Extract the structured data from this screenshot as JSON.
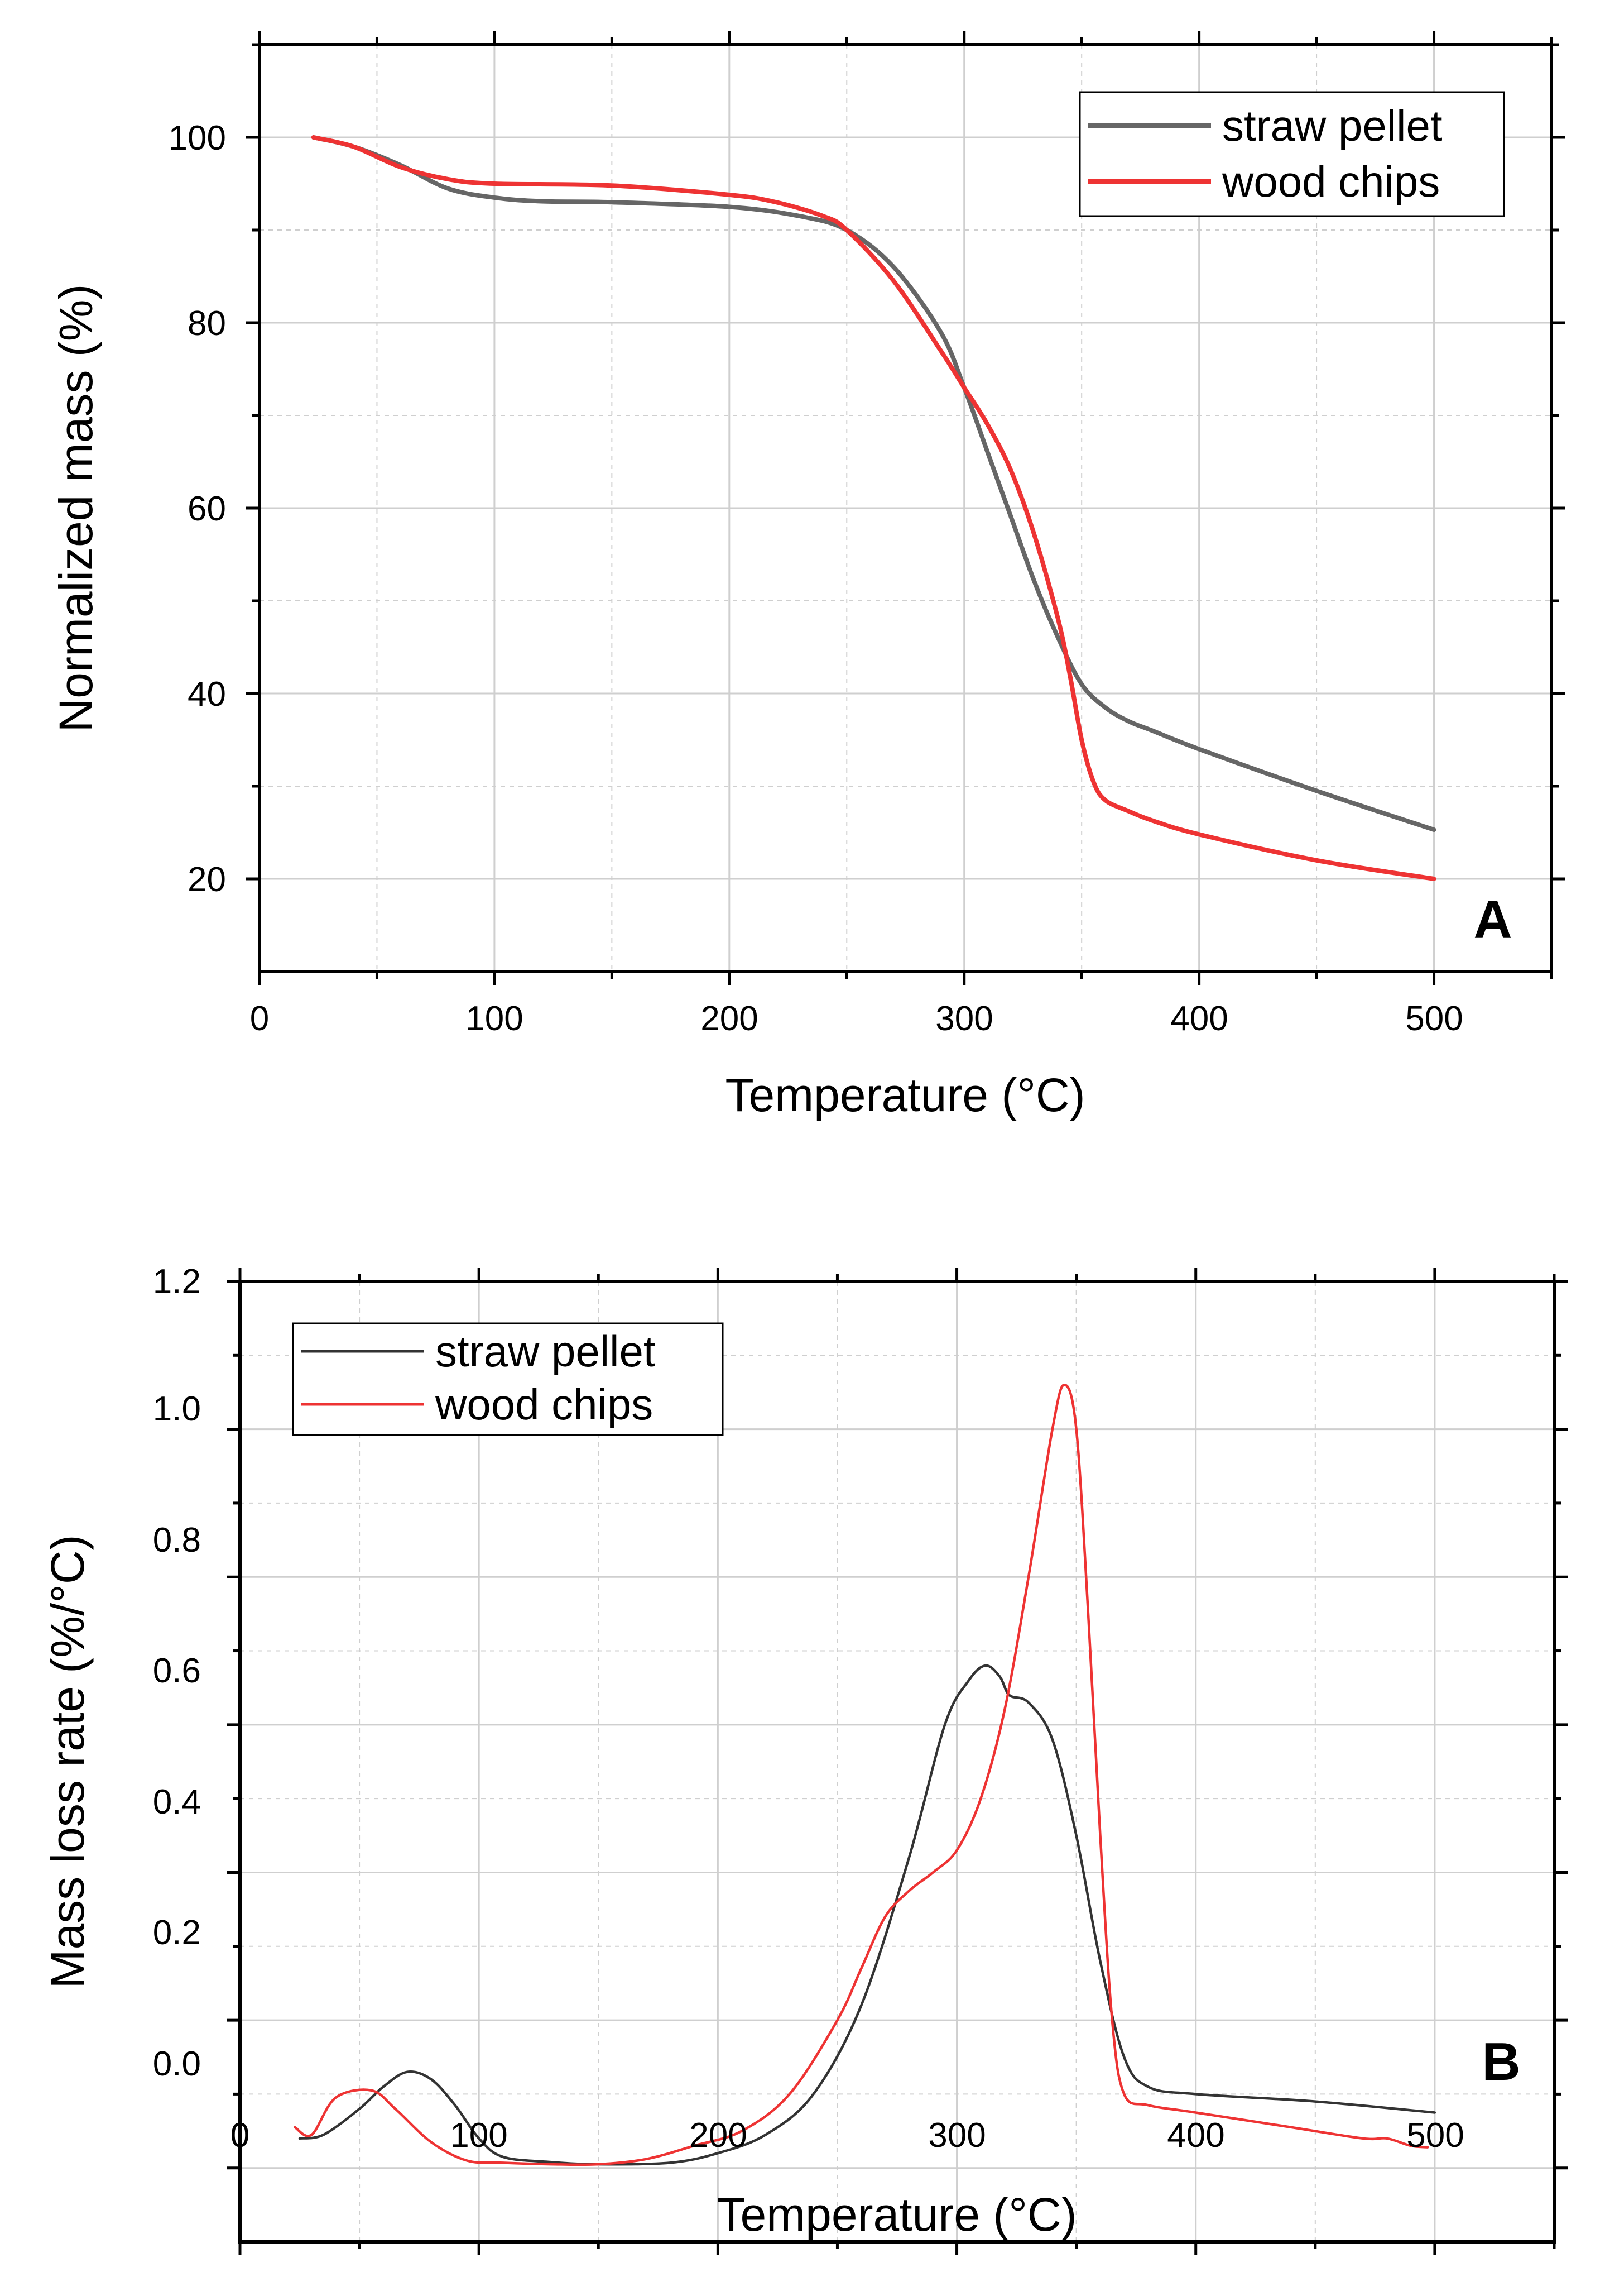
{
  "chart_data": [
    {
      "type": "line",
      "panel": "A",
      "xlabel": "Temperature (°C)",
      "ylabel": "Normalized mass (%)",
      "xlim": [
        0,
        550
      ],
      "ylim": [
        10,
        110
      ],
      "xticks": [
        0,
        100,
        200,
        300,
        400,
        500
      ],
      "yticks": [
        20,
        40,
        60,
        80,
        100
      ],
      "xtick_labels": [
        "0",
        "100",
        "200",
        "300",
        "400",
        "500"
      ],
      "ytick_labels": [
        "20",
        "40",
        "60",
        "80",
        "100"
      ],
      "grid": true,
      "legend_position": "top-right",
      "series": [
        {
          "name": "straw pellet",
          "color": "#666666",
          "x": [
            23,
            40,
            60,
            80,
            100,
            120,
            150,
            200,
            230,
            250,
            270,
            290,
            300,
            310,
            320,
            330,
            340,
            350,
            360,
            370,
            380,
            400,
            450,
            500
          ],
          "y": [
            100,
            99,
            97,
            94.5,
            93.5,
            93.1,
            93.0,
            92.5,
            91.5,
            90,
            86,
            79,
            73,
            66,
            59,
            52,
            46,
            41,
            38.5,
            37,
            36,
            34,
            29.5,
            25.3
          ]
        },
        {
          "name": "wood chips",
          "color": "#ee3333",
          "x": [
            23,
            40,
            60,
            80,
            100,
            150,
            200,
            220,
            240,
            250,
            270,
            290,
            300,
            310,
            320,
            330,
            340,
            345,
            350,
            355,
            360,
            370,
            380,
            400,
            450,
            500
          ],
          "y": [
            100,
            99,
            96.8,
            95.5,
            95,
            94.8,
            93.8,
            93,
            91.5,
            90,
            84.5,
            77,
            73,
            69,
            64,
            57,
            48,
            42,
            35,
            30.5,
            28.5,
            27.3,
            26.3,
            24.8,
            22,
            20
          ]
        }
      ]
    },
    {
      "type": "line",
      "panel": "B",
      "xlabel": "Temperature (°C)",
      "ylabel": "Mass loss rate (%/°C)",
      "xlim": [
        0,
        550
      ],
      "ylim": [
        -0.1,
        1.2
      ],
      "xticks": [
        0,
        100,
        200,
        300,
        400,
        500
      ],
      "yticks": [
        0.0,
        0.2,
        0.4,
        0.6,
        0.8,
        1.0,
        1.2
      ],
      "xtick_labels": [
        "0",
        "100",
        "200",
        "300",
        "400",
        "500"
      ],
      "ytick_labels": [
        "0.0",
        "0.2",
        "0.4",
        "0.6",
        "0.8",
        "1.0",
        "1.2"
      ],
      "grid": true,
      "legend_position": "top-left",
      "series": [
        {
          "name": "straw pellet",
          "color": "#333333",
          "x": [
            25,
            35,
            50,
            60,
            70,
            80,
            90,
            100,
            110,
            130,
            150,
            180,
            200,
            220,
            240,
            260,
            280,
            295,
            305,
            312,
            318,
            322,
            330,
            340,
            350,
            360,
            370,
            380,
            400,
            450,
            500
          ],
          "y": [
            0.04,
            0.045,
            0.08,
            0.11,
            0.13,
            0.12,
            0.085,
            0.04,
            0.015,
            0.008,
            0.005,
            0.007,
            0.02,
            0.045,
            0.1,
            0.22,
            0.42,
            0.6,
            0.66,
            0.68,
            0.665,
            0.64,
            0.63,
            0.58,
            0.45,
            0.28,
            0.15,
            0.11,
            0.1,
            0.09,
            0.075
          ]
        },
        {
          "name": "wood chips",
          "color": "#ee3333",
          "x": [
            23,
            30,
            40,
            55,
            65,
            80,
            95,
            110,
            130,
            150,
            170,
            190,
            210,
            230,
            250,
            260,
            270,
            280,
            290,
            300,
            310,
            320,
            330,
            340,
            345,
            350,
            355,
            360,
            365,
            370,
            380,
            400,
            440,
            470,
            480,
            490,
            497
          ],
          "y": [
            0.055,
            0.045,
            0.095,
            0.105,
            0.08,
            0.035,
            0.01,
            0.007,
            0.005,
            0.005,
            0.012,
            0.03,
            0.05,
            0.1,
            0.2,
            0.27,
            0.34,
            0.375,
            0.4,
            0.43,
            0.5,
            0.62,
            0.8,
            1.0,
            1.06,
            1.0,
            0.75,
            0.45,
            0.2,
            0.1,
            0.085,
            0.075,
            0.055,
            0.04,
            0.04,
            0.03,
            0.028
          ]
        }
      ]
    }
  ]
}
